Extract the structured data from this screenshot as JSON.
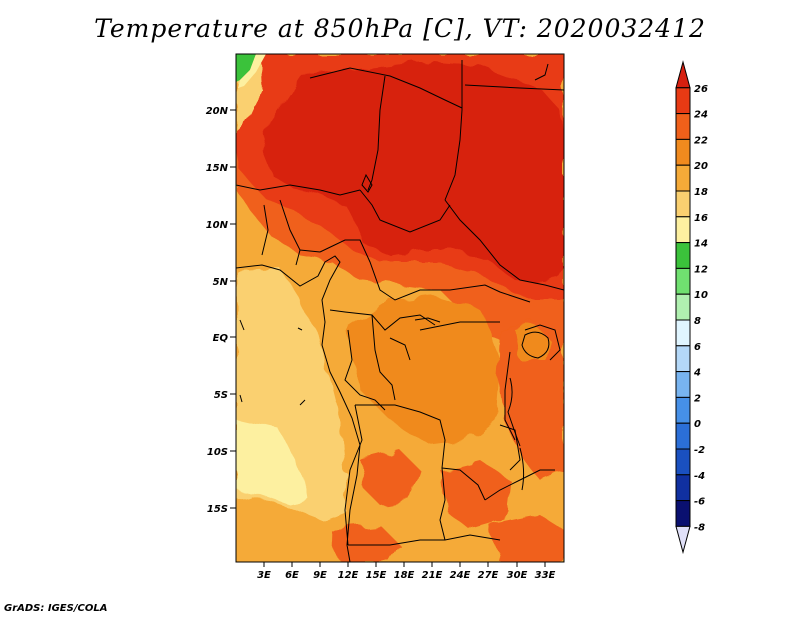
{
  "title": "Temperature at 850hPa [C], VT: 2020032412",
  "credit": "GrADS: IGES/COLA",
  "map": {
    "variable": "Temperature at 850hPa",
    "units": "C",
    "valid_time": "2020032412",
    "lat_labels": [
      "20N",
      "15N",
      "10N",
      "5N",
      "EQ",
      "5S",
      "10S",
      "15S"
    ],
    "lon_labels": [
      "3E",
      "6E",
      "9E",
      "12E",
      "15E",
      "18E",
      "21E",
      "24E",
      "27E",
      "30E",
      "33E"
    ]
  },
  "colorbar": {
    "labels": [
      "26",
      "24",
      "22",
      "20",
      "18",
      "16",
      "14",
      "12",
      "10",
      "8",
      "6",
      "4",
      "2",
      "0",
      "-2",
      "-4",
      "-6",
      "-8"
    ],
    "colors": [
      "#d72010",
      "#e83a14",
      "#f0601a",
      "#f08a1e",
      "#f5aa38",
      "#fad070",
      "#fdf0a0",
      "#3bc23b",
      "#70e070",
      "#b0f0b0",
      "#e0f5ff",
      "#b4d8f8",
      "#78b4f0",
      "#4690e8",
      "#2b6fd8",
      "#1a50c0",
      "#1030a0",
      "#0a1070",
      "#e0e0f8"
    ]
  }
}
